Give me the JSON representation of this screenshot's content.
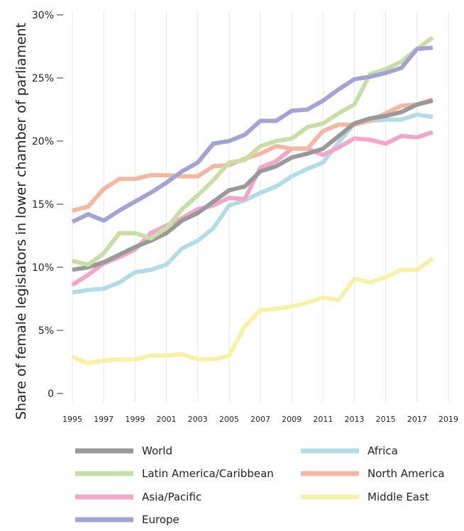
{
  "chart_data": {
    "type": "line",
    "title": "",
    "xlabel": "",
    "ylabel": "Share of female legislators in lower chamber of parliament",
    "xlim": [
      1995,
      2019
    ],
    "ylim": [
      0,
      30
    ],
    "x_ticks": [
      1995,
      1997,
      1999,
      2001,
      2003,
      2005,
      2007,
      2009,
      2011,
      2013,
      2015,
      2017,
      2019
    ],
    "y_ticks": [
      {
        "value": 0,
        "label": "0"
      },
      {
        "value": 5,
        "label": "5%"
      },
      {
        "value": 10,
        "label": "10%"
      },
      {
        "value": 15,
        "label": "15%"
      },
      {
        "value": 20,
        "label": "20%"
      },
      {
        "value": 25,
        "label": "25%"
      },
      {
        "value": 30,
        "label": "30%"
      }
    ],
    "grid": "vertical",
    "legend_position": "bottom",
    "x": [
      1995,
      1996,
      1997,
      1998,
      1999,
      2000,
      2001,
      2002,
      2003,
      2004,
      2005,
      2006,
      2007,
      2008,
      2009,
      2010,
      2011,
      2012,
      2013,
      2014,
      2015,
      2016,
      2017,
      2018
    ],
    "series": [
      {
        "name": "World",
        "color": "#999999",
        "values": [
          9.8,
          10.0,
          10.4,
          11.0,
          11.6,
          12.1,
          12.7,
          13.7,
          14.3,
          15.2,
          16.1,
          16.4,
          17.6,
          18.0,
          18.7,
          19.0,
          19.4,
          20.4,
          21.4,
          21.8,
          22.0,
          22.3,
          22.9,
          23.2
        ]
      },
      {
        "name": "Latin America/Caribbean",
        "color": "#c9dea4",
        "values": [
          10.5,
          10.2,
          11.1,
          12.7,
          12.7,
          12.3,
          13.1,
          14.6,
          15.7,
          16.9,
          18.3,
          18.5,
          19.6,
          20.0,
          20.2,
          21.1,
          21.4,
          22.2,
          22.9,
          25.3,
          25.7,
          26.3,
          27.3,
          28.2
        ]
      },
      {
        "name": "Asia/Pacific",
        "color": "#f4a6c8",
        "values": [
          8.6,
          9.4,
          10.3,
          10.8,
          11.4,
          12.7,
          13.3,
          13.9,
          14.6,
          14.9,
          15.5,
          15.4,
          17.9,
          18.4,
          19.4,
          19.4,
          18.9,
          19.5,
          20.2,
          20.1,
          19.8,
          20.4,
          20.3,
          20.7
        ]
      },
      {
        "name": "Europe",
        "color": "#a3a3d4",
        "values": [
          13.6,
          14.2,
          13.7,
          14.5,
          15.2,
          15.9,
          16.7,
          17.6,
          18.3,
          19.8,
          20.0,
          20.5,
          21.6,
          21.6,
          22.4,
          22.5,
          23.2,
          24.1,
          24.9,
          25.1,
          25.4,
          25.8,
          27.3,
          27.4
        ]
      },
      {
        "name": "Africa",
        "color": "#b3dde6",
        "values": [
          8.0,
          8.2,
          8.3,
          8.8,
          9.6,
          9.8,
          10.2,
          11.5,
          12.1,
          13.1,
          14.9,
          15.3,
          15.9,
          16.4,
          17.2,
          17.8,
          18.3,
          19.9,
          21.4,
          21.6,
          21.7,
          21.7,
          22.1,
          21.9
        ]
      },
      {
        "name": "North America",
        "color": "#f4b8a0",
        "values": [
          14.5,
          14.8,
          16.2,
          17.0,
          17.0,
          17.3,
          17.3,
          17.2,
          17.2,
          18.0,
          18.1,
          18.6,
          19.0,
          19.6,
          19.4,
          19.4,
          20.8,
          21.3,
          21.3,
          21.6,
          22.2,
          22.8,
          22.9,
          23.3
        ]
      },
      {
        "name": "Middle East",
        "color": "#f7f1a7",
        "values": [
          2.9,
          2.4,
          2.6,
          2.7,
          2.7,
          3.0,
          3.0,
          3.1,
          2.7,
          2.7,
          3.0,
          5.3,
          6.6,
          6.7,
          6.9,
          7.2,
          7.6,
          7.4,
          9.1,
          8.8,
          9.2,
          9.8,
          9.8,
          10.7
        ]
      }
    ],
    "legend_order": [
      "World",
      "Africa",
      "Latin America/Caribbean",
      "North America",
      "Asia/Pacific",
      "Middle East",
      "Europe"
    ]
  }
}
